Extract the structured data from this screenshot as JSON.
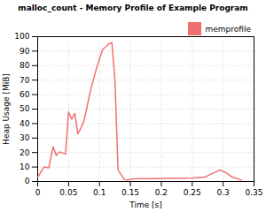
{
  "chart_data": {
    "type": "line",
    "title": "malloc_count - Memory Profile of Example Program",
    "x_label": "Time [s]",
    "y_label": "Heap Usage [MiB]",
    "x": [
      0.0,
      0.01,
      0.018,
      0.025,
      0.03,
      0.035,
      0.045,
      0.05,
      0.055,
      0.06,
      0.065,
      0.07,
      0.075,
      0.085,
      0.095,
      0.105,
      0.115,
      0.12,
      0.125,
      0.13,
      0.14,
      0.145,
      0.15,
      0.16,
      0.18,
      0.25,
      0.27,
      0.295,
      0.305,
      0.315,
      0.33
    ],
    "series": [
      {
        "name": "memprofile",
        "color": "#f07070",
        "values": [
          3.0,
          10.0,
          9.5,
          24.0,
          18.0,
          20.5,
          19.0,
          48.0,
          43.0,
          47.0,
          33.0,
          37.0,
          42.0,
          62.0,
          78.0,
          91.0,
          95.0,
          96.0,
          70.0,
          8.0,
          1.5,
          1.0,
          1.5,
          2.0,
          2.0,
          2.5,
          3.0,
          8.0,
          6.0,
          3.0,
          1.0
        ]
      }
    ],
    "xlim": [
      0,
      0.35
    ],
    "ylim": [
      0,
      100
    ],
    "xticks": [
      0,
      0.05,
      0.1,
      0.15,
      0.2,
      0.25,
      0.3,
      0.35
    ],
    "yticks": [
      0,
      10,
      20,
      30,
      40,
      50,
      60,
      70,
      80,
      90,
      100
    ],
    "grid": true,
    "legend": "upper right"
  }
}
